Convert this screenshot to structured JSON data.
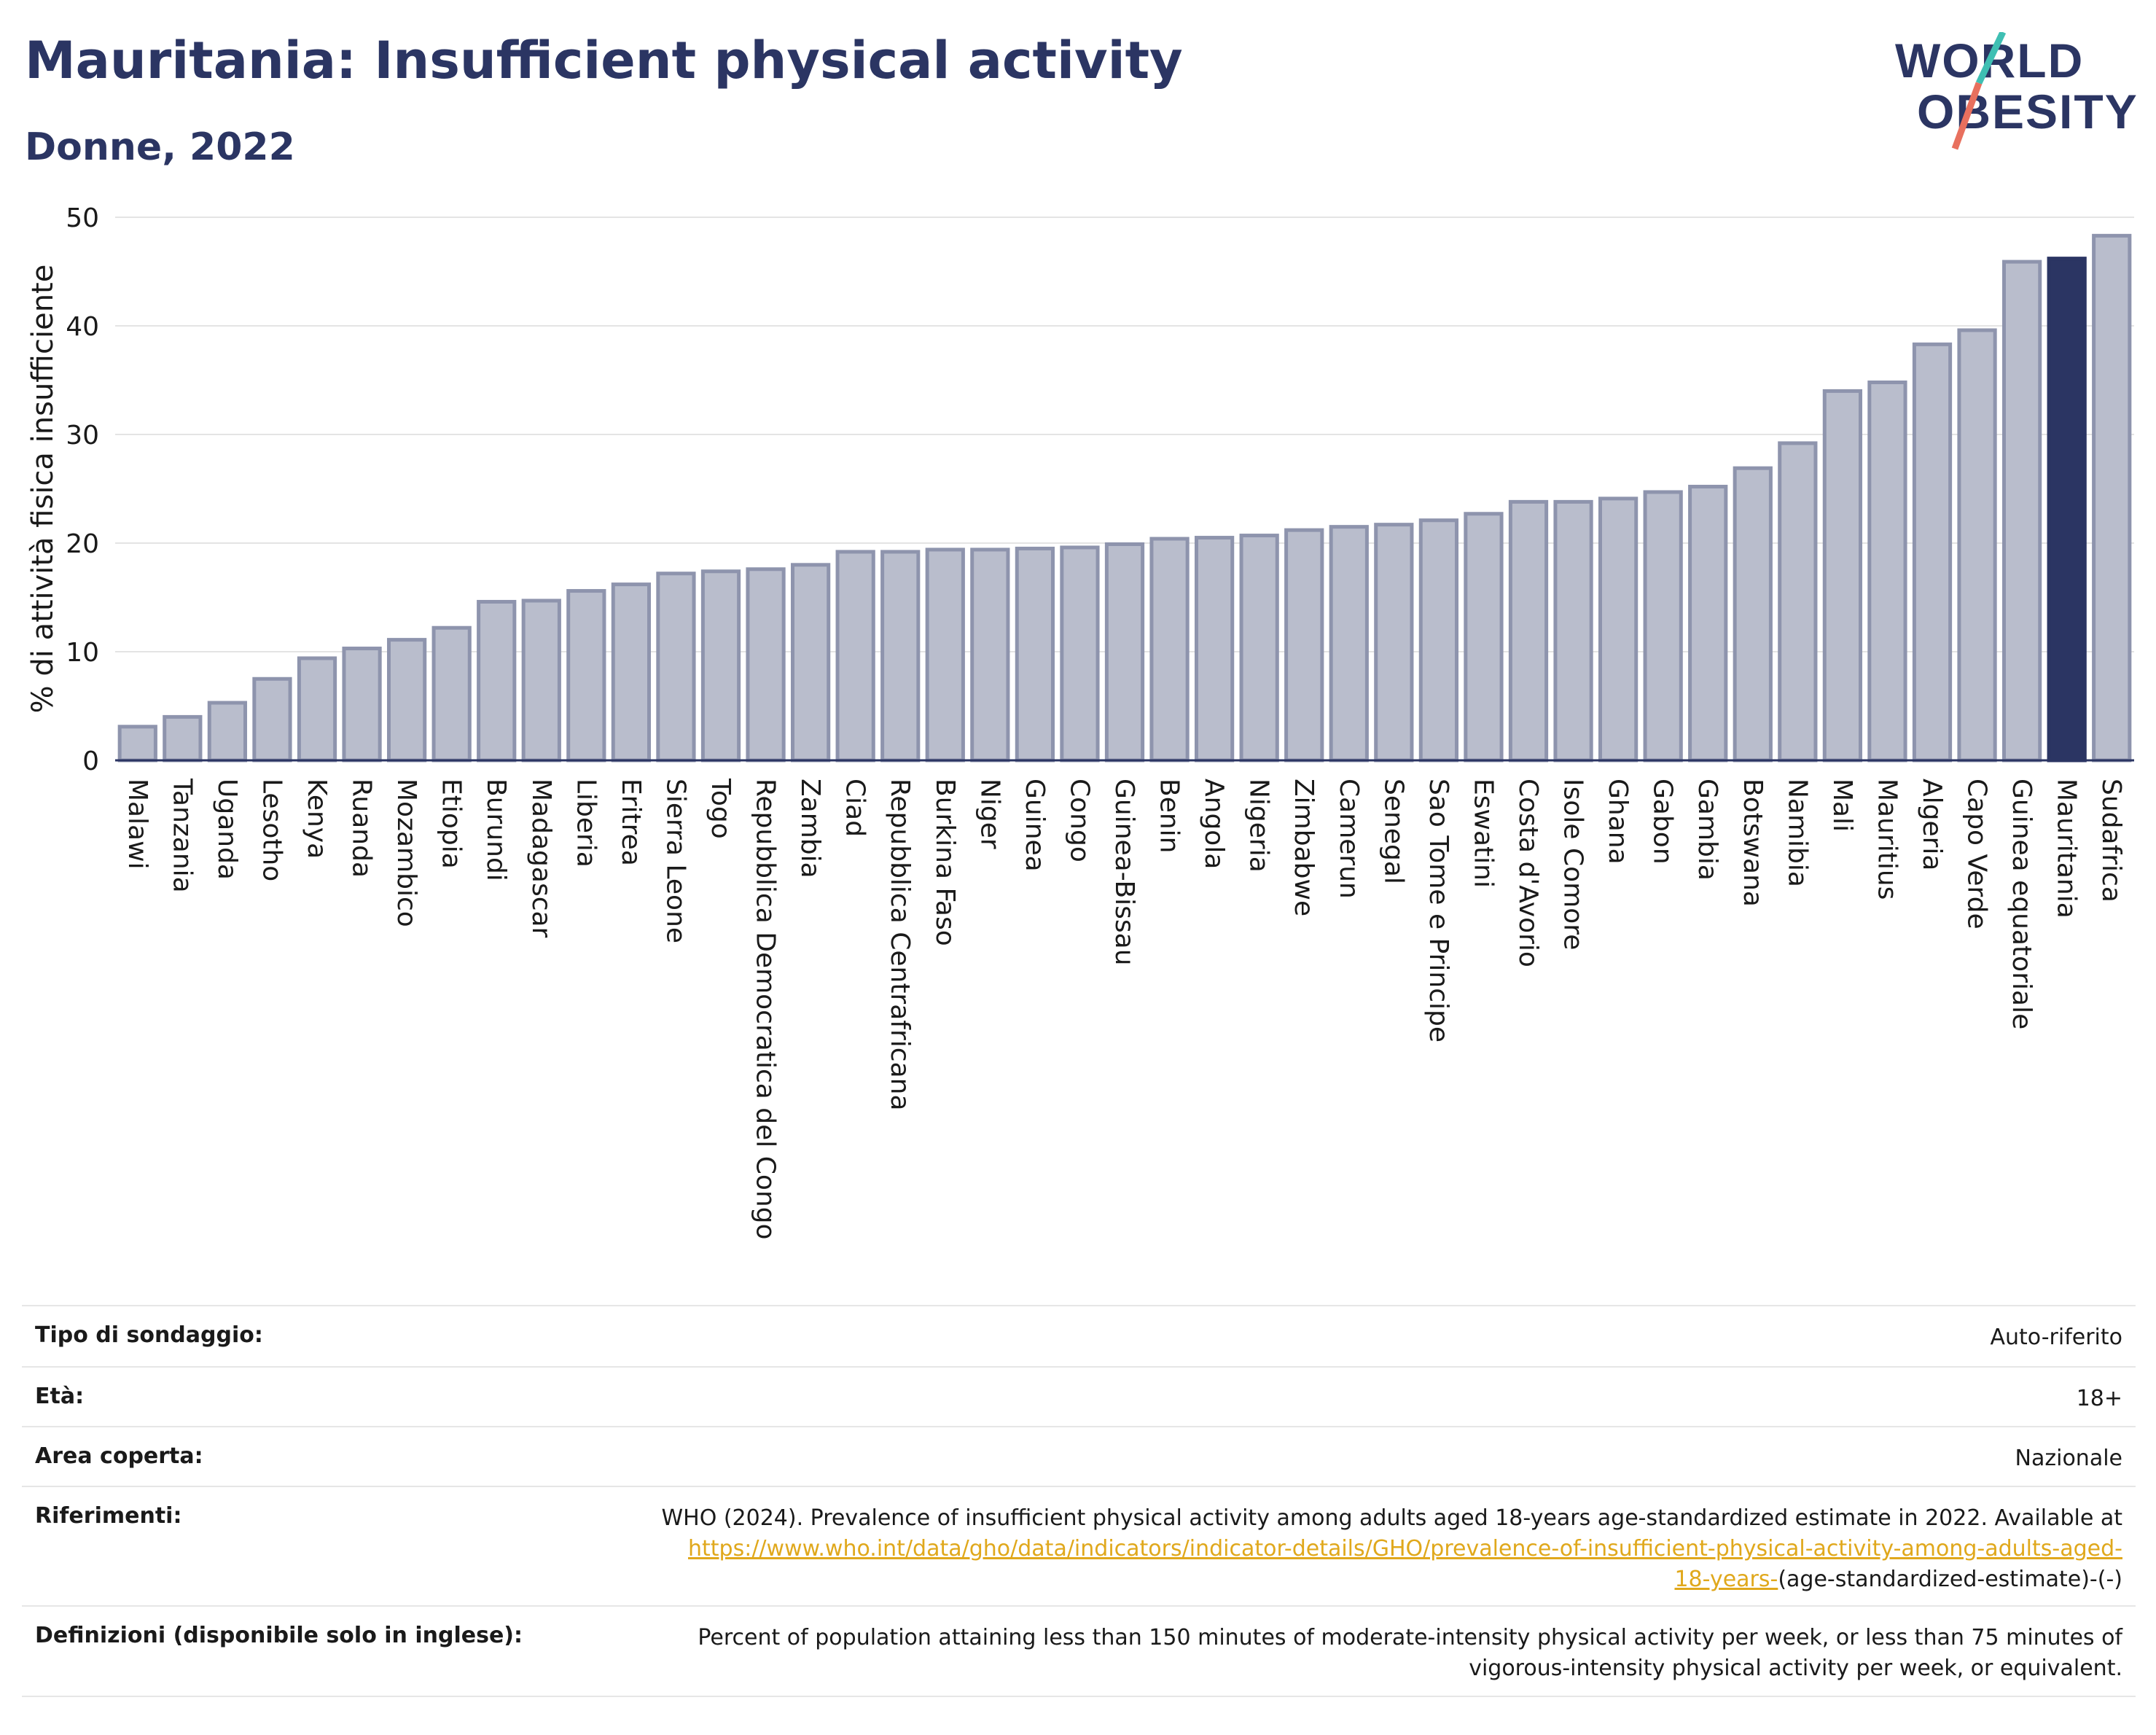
{
  "header": {
    "title": "Mauritania: Insufficient physical activity",
    "subtitle": "Donne, 2022",
    "logo_line1": "WORLD",
    "logo_line2": "OBESITY"
  },
  "colors": {
    "bar": "#b9bdcc",
    "bar_border": "#8e94ad",
    "highlight": "#2b3563",
    "title": "#2b3563",
    "link": "#e0a81c",
    "logo_slash_teal": "#3fbfb3",
    "logo_slash_coral": "#e8705e"
  },
  "chart_data": {
    "type": "bar",
    "ylabel": "% di attività fisica insufficiente",
    "xlabel": "",
    "ylim": [
      0,
      50
    ],
    "yticks": [
      0,
      10,
      20,
      30,
      40,
      50
    ],
    "grid": true,
    "highlight": "Mauritania",
    "categories": [
      "Malawi",
      "Tanzania",
      "Uganda",
      "Lesotho",
      "Kenya",
      "Ruanda",
      "Mozambico",
      "Etiopia",
      "Burundi",
      "Madagascar",
      "Liberia",
      "Eritrea",
      "Sierra Leone",
      "Togo",
      "Repubblica Democratica del Congo",
      "Zambia",
      "Ciad",
      "Repubblica Centrafricana",
      "Burkina Faso",
      "Niger",
      "Guinea",
      "Congo",
      "Guinea-Bissau",
      "Benin",
      "Angola",
      "Nigeria",
      "Zimbabwe",
      "Camerun",
      "Senegal",
      "Sao Tome e Principe",
      "Eswatini",
      "Costa d'Avorio",
      "Isole Comore",
      "Ghana",
      "Gabon",
      "Gambia",
      "Botswana",
      "Namibia",
      "Mali",
      "Mauritius",
      "Algeria",
      "Capo Verde",
      "Guinea equatoriale",
      "Mauritania",
      "Sudafrica"
    ],
    "values": [
      3.1,
      4.0,
      5.3,
      7.5,
      9.4,
      10.3,
      11.1,
      12.2,
      14.6,
      14.7,
      15.6,
      16.2,
      17.2,
      17.4,
      17.6,
      18.0,
      19.2,
      19.2,
      19.4,
      19.4,
      19.5,
      19.6,
      19.9,
      20.4,
      20.5,
      20.7,
      21.2,
      21.5,
      21.7,
      22.1,
      22.7,
      23.8,
      23.8,
      24.1,
      24.7,
      25.2,
      26.9,
      29.2,
      34.0,
      34.8,
      38.3,
      39.6,
      45.9,
      46.2,
      48.3
    ]
  },
  "details": {
    "survey_label": "Tipo di sondaggio:",
    "survey_value": "Auto-riferito",
    "age_label": "Età:",
    "age_value": "18+",
    "area_label": "Area coperta:",
    "area_value": "Nazionale",
    "refs_label": "Riferimenti:",
    "refs_text": "WHO (2024). Prevalence of insufficient physical activity among adults aged 18-years age-standardized estimate in 2022. Available at",
    "refs_link_part1": "https://www.who.int/data/gho/data/indicators/indicator-details/GHO/prevalence-of-insufficient-physical-activity-among-adults-aged-",
    "refs_link_part2": "18-years-",
    "refs_tail": "(age-standardized-estimate)-(-)",
    "defs_label": "Definizioni (disponibile solo in inglese):",
    "defs_line1": "Percent of population attaining less than 150 minutes of moderate-intensity physical activity per week, or less than 75 minutes of",
    "defs_line2": "vigorous-intensity physical activity per week, or equivalent."
  }
}
